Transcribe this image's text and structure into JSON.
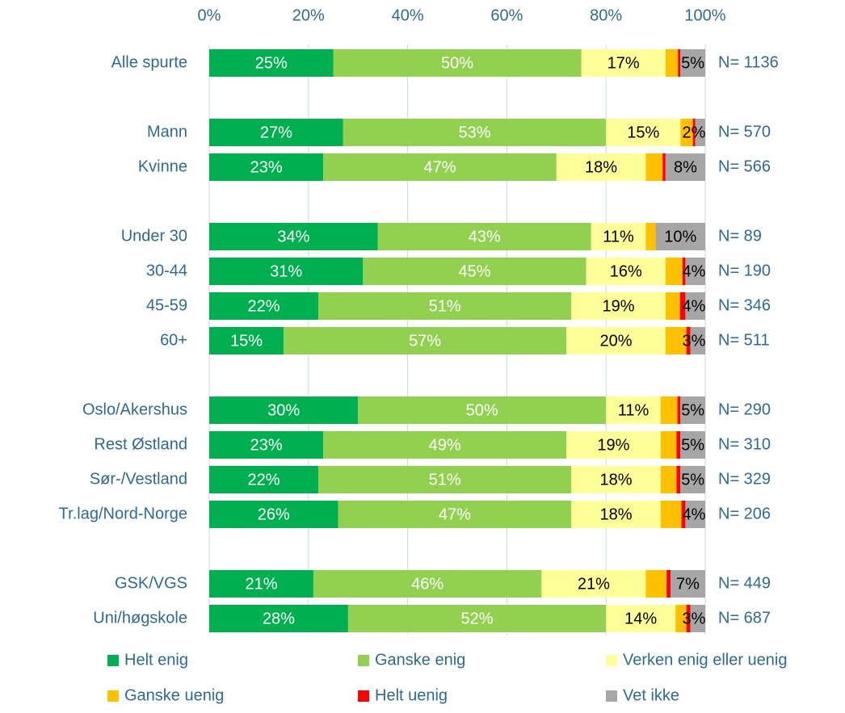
{
  "chart_data": {
    "type": "bar",
    "orientation": "horizontal",
    "stacked": true,
    "categories": [
      "Alle spurte",
      null,
      "Mann",
      "Kvinne",
      null,
      "Under 30",
      "30-44",
      "45-59",
      "60+",
      null,
      "Oslo/Akershus",
      "Rest Østland",
      "Sør-/Vestland",
      "Tr.lag/Nord-Norge",
      null,
      "GSK/VGS",
      "Uni/høgskole"
    ],
    "n_labels": [
      "N= 1136",
      null,
      "N= 570",
      "N= 566",
      null,
      "N= 89",
      "N= 190",
      "N= 346",
      "N= 511",
      null,
      "N= 290",
      "N= 310",
      "N= 329",
      "N= 206",
      null,
      "N= 449",
      "N= 687"
    ],
    "xlim": [
      0,
      100
    ],
    "xticks": [
      {
        "value": 0,
        "label": "0%"
      },
      {
        "value": 20,
        "label": "20%"
      },
      {
        "value": 40,
        "label": "40%"
      },
      {
        "value": 60,
        "label": "60%"
      },
      {
        "value": 80,
        "label": "80%"
      },
      {
        "value": 100,
        "label": "100%"
      }
    ],
    "grid": true,
    "legend": "bottom",
    "series": [
      {
        "name": "Helt enig",
        "color": "#00b050",
        "label_color": "#ffffff",
        "values": [
          25,
          null,
          27,
          23,
          null,
          34,
          31,
          22,
          15,
          null,
          30,
          23,
          22,
          26,
          null,
          21,
          28
        ],
        "value_labels": [
          "25%",
          null,
          "27%",
          "23%",
          null,
          "34%",
          "31%",
          "22%",
          "15%",
          null,
          "30%",
          "23%",
          "22%",
          "26%",
          null,
          "21%",
          "28%"
        ]
      },
      {
        "name": "Ganske enig",
        "color": "#92d050",
        "label_color": "#ffffff",
        "values": [
          50,
          null,
          53,
          47,
          null,
          43,
          45,
          51,
          57,
          null,
          50,
          49,
          51,
          47,
          null,
          46,
          52
        ],
        "value_labels": [
          "50%",
          null,
          "53%",
          "47%",
          null,
          "43%",
          "45%",
          "51%",
          "57%",
          null,
          "50%",
          "49%",
          "51%",
          "47%",
          null,
          "46%",
          "52%"
        ]
      },
      {
        "name": "Verken enig eller uenig",
        "color": "#ffff99",
        "label_color": "#000000",
        "values": [
          17,
          null,
          15,
          18,
          null,
          11,
          16,
          19,
          20,
          null,
          11,
          19,
          18,
          18,
          null,
          21,
          14
        ],
        "value_labels": [
          "17%",
          null,
          "15%",
          "18%",
          null,
          "11%",
          "16%",
          "19%",
          "20%",
          null,
          "11%",
          "19%",
          "18%",
          "18%",
          null,
          "21%",
          "14%"
        ]
      },
      {
        "name": "Ganske uenig",
        "color": "#ffc000",
        "values": [
          2.5,
          null,
          2.5,
          3.4,
          null,
          2,
          3.4,
          2.9,
          4.2,
          null,
          3.4,
          3.2,
          3.2,
          4.2,
          null,
          4.2,
          2.2
        ]
      },
      {
        "name": "Helt uenig",
        "color": "#ff0000",
        "values": [
          0.5,
          null,
          0.5,
          0.6,
          null,
          0,
          0.6,
          1.1,
          0.8,
          null,
          0.6,
          0.8,
          0.8,
          0.8,
          null,
          0.8,
          0.8
        ]
      },
      {
        "name": "Vet ikke",
        "color": "#a6a6a6",
        "label_color": "#000000",
        "values": [
          5,
          null,
          2,
          8,
          null,
          10,
          4,
          4,
          3,
          null,
          5,
          5,
          5,
          4,
          null,
          7,
          3
        ],
        "value_labels": [
          "5%",
          null,
          "2%",
          "8%",
          null,
          "10%",
          "4%",
          "4%",
          "3%",
          null,
          "5%",
          "5%",
          "5%",
          "4%",
          null,
          "7%",
          "3%"
        ]
      }
    ]
  }
}
